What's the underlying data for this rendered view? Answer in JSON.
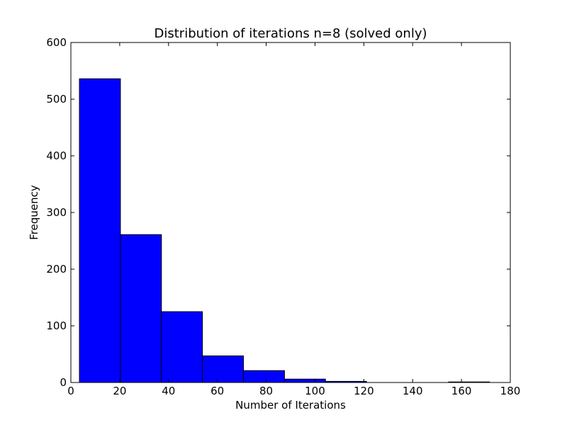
{
  "chart_data": {
    "type": "bar",
    "title": "Distribution of iterations n=8 (solved only)",
    "xlabel": "Number of Iterations",
    "ylabel": "Frequency",
    "xlim": [
      0,
      180
    ],
    "ylim": [
      0,
      600
    ],
    "xticks": [
      0,
      20,
      40,
      60,
      80,
      100,
      120,
      140,
      160,
      180
    ],
    "yticks": [
      0,
      100,
      200,
      300,
      400,
      500,
      600
    ],
    "grid": false,
    "legend": "none",
    "bar_color": "#0000ff",
    "edge_color": "#000000",
    "bins": [
      {
        "x0": 3.5,
        "x1": 20.3,
        "value": 536
      },
      {
        "x0": 20.3,
        "x1": 37.1,
        "value": 261
      },
      {
        "x0": 37.1,
        "x1": 53.9,
        "value": 125
      },
      {
        "x0": 53.9,
        "x1": 70.7,
        "value": 47
      },
      {
        "x0": 70.7,
        "x1": 87.5,
        "value": 21
      },
      {
        "x0": 87.5,
        "x1": 104.3,
        "value": 6
      },
      {
        "x0": 104.3,
        "x1": 121.1,
        "value": 2
      },
      {
        "x0": 121.1,
        "x1": 137.9,
        "value": 0
      },
      {
        "x0": 137.9,
        "x1": 154.7,
        "value": 0
      },
      {
        "x0": 154.7,
        "x1": 171.5,
        "value": 1
      }
    ]
  }
}
